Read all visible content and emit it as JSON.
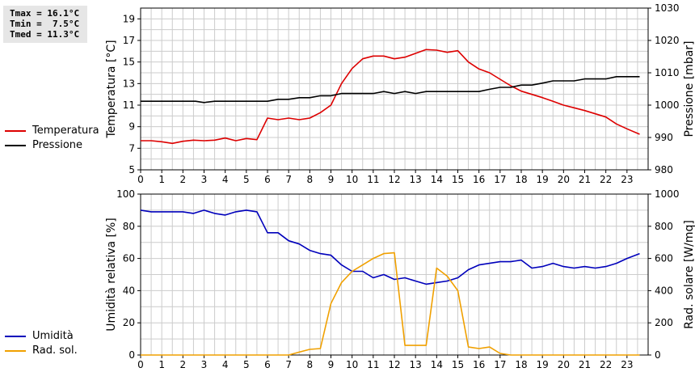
{
  "stats": {
    "tmax": "Tmax = 16.1°C",
    "tmin": "Tmin =  7.5°C",
    "tmed": "Tmed = 11.3°C"
  },
  "legend": {
    "temp": "Temperatura",
    "press": "Pressione",
    "hum": "Umidità",
    "rad": "Rad. sol."
  },
  "colors": {
    "temp": "#dd0000",
    "press": "#000000",
    "hum": "#0000bb",
    "rad": "#f0a000",
    "grid": "#cccccc"
  },
  "chart_data": [
    {
      "type": "line",
      "xlabel": "",
      "ylabel": "Temperatura [°C]",
      "y2label": "Pressione [mbar]",
      "xlim": [
        0,
        24
      ],
      "ylim": [
        5,
        20
      ],
      "y2lim": [
        980,
        1030
      ],
      "x_ticks": [
        "0",
        "1",
        "2",
        "3",
        "4",
        "5",
        "6",
        "7",
        "8",
        "9",
        "10",
        "11",
        "12",
        "13",
        "14",
        "15",
        "16",
        "17",
        "18",
        "19",
        "20",
        "21",
        "22",
        "23"
      ],
      "y_ticks": [
        "5",
        "7",
        "9",
        "11",
        "13",
        "15",
        "17",
        "19"
      ],
      "y2_ticks": [
        "980",
        "990",
        "1000",
        "1010",
        "1020",
        "1030"
      ],
      "grid": true,
      "series": [
        {
          "name": "Temperatura",
          "axis": "left",
          "points": [
            [
              0,
              7.7
            ],
            [
              0.5,
              7.7
            ],
            [
              1,
              7.6
            ],
            [
              1.5,
              7.45
            ],
            [
              2,
              7.65
            ],
            [
              2.5,
              7.75
            ],
            [
              3,
              7.7
            ],
            [
              3.5,
              7.75
            ],
            [
              4,
              7.95
            ],
            [
              4.5,
              7.7
            ],
            [
              5,
              7.9
            ],
            [
              5.5,
              7.8
            ],
            [
              6,
              9.8
            ],
            [
              6.5,
              9.65
            ],
            [
              7,
              9.8
            ],
            [
              7.5,
              9.65
            ],
            [
              8,
              9.8
            ],
            [
              8.5,
              10.3
            ],
            [
              9,
              11.0
            ],
            [
              9.5,
              13.0
            ],
            [
              10,
              14.4
            ],
            [
              10.5,
              15.3
            ],
            [
              11,
              15.55
            ],
            [
              11.5,
              15.55
            ],
            [
              12,
              15.3
            ],
            [
              12.5,
              15.45
            ],
            [
              13,
              15.8
            ],
            [
              13.5,
              16.15
            ],
            [
              14,
              16.1
            ],
            [
              14.5,
              15.9
            ],
            [
              15,
              16.05
            ],
            [
              15.5,
              15.0
            ],
            [
              16,
              14.35
            ],
            [
              16.5,
              14.0
            ],
            [
              17,
              13.4
            ],
            [
              17.5,
              12.8
            ],
            [
              18,
              12.3
            ],
            [
              18.5,
              12.0
            ],
            [
              19,
              11.7
            ],
            [
              19.5,
              11.35
            ],
            [
              20,
              11.0
            ],
            [
              20.5,
              10.75
            ],
            [
              21,
              10.5
            ],
            [
              21.5,
              10.2
            ],
            [
              22,
              9.9
            ],
            [
              22.5,
              9.25
            ],
            [
              23,
              8.8
            ],
            [
              23.6,
              8.3
            ]
          ]
        },
        {
          "name": "Pressione",
          "axis": "right",
          "points": [
            [
              0,
              1001.2
            ],
            [
              1,
              1001.2
            ],
            [
              2,
              1001.2
            ],
            [
              2.6,
              1001.2
            ],
            [
              3,
              1000.8
            ],
            [
              3.5,
              1001.2
            ],
            [
              4,
              1001.2
            ],
            [
              5,
              1001.2
            ],
            [
              6,
              1001.2
            ],
            [
              6.5,
              1001.8
            ],
            [
              7,
              1001.8
            ],
            [
              7.5,
              1002.3
            ],
            [
              8,
              1002.3
            ],
            [
              8.5,
              1002.9
            ],
            [
              9,
              1002.9
            ],
            [
              9.5,
              1003.6
            ],
            [
              10,
              1003.6
            ],
            [
              11,
              1003.6
            ],
            [
              11.5,
              1004.2
            ],
            [
              12,
              1003.6
            ],
            [
              12.5,
              1004.2
            ],
            [
              13,
              1003.6
            ],
            [
              13.5,
              1004.2
            ],
            [
              14,
              1004.2
            ],
            [
              15,
              1004.2
            ],
            [
              16,
              1004.2
            ],
            [
              16.5,
              1004.9
            ],
            [
              17,
              1005.5
            ],
            [
              17.5,
              1005.5
            ],
            [
              18,
              1006.2
            ],
            [
              18.5,
              1006.2
            ],
            [
              19,
              1006.8
            ],
            [
              19.5,
              1007.5
            ],
            [
              20,
              1007.5
            ],
            [
              20.5,
              1007.5
            ],
            [
              21,
              1008.1
            ],
            [
              21.5,
              1008.1
            ],
            [
              22,
              1008.1
            ],
            [
              22.5,
              1008.8
            ],
            [
              23,
              1008.8
            ],
            [
              23.6,
              1008.8
            ]
          ]
        }
      ]
    },
    {
      "type": "line",
      "xlabel": "",
      "ylabel": "Umidità relativa [%]",
      "y2label": "Rad. solare [W/mq]",
      "xlim": [
        0,
        24
      ],
      "ylim": [
        0,
        100
      ],
      "y2lim": [
        0,
        1000
      ],
      "x_ticks": [
        "0",
        "1",
        "2",
        "3",
        "4",
        "5",
        "6",
        "7",
        "8",
        "9",
        "10",
        "11",
        "12",
        "13",
        "14",
        "15",
        "16",
        "17",
        "18",
        "19",
        "20",
        "21",
        "22",
        "23"
      ],
      "y_ticks": [
        "0",
        "20",
        "40",
        "60",
        "80",
        "100"
      ],
      "y2_ticks": [
        "0",
        "200",
        "400",
        "600",
        "800",
        "1000"
      ],
      "grid": true,
      "series": [
        {
          "name": "Umidità",
          "axis": "left",
          "points": [
            [
              0,
              90
            ],
            [
              0.5,
              89
            ],
            [
              1,
              89
            ],
            [
              1.5,
              89
            ],
            [
              2,
              89
            ],
            [
              2.5,
              88
            ],
            [
              3,
              90
            ],
            [
              3.5,
              88
            ],
            [
              4,
              87
            ],
            [
              4.5,
              89
            ],
            [
              5,
              90
            ],
            [
              5.5,
              89
            ],
            [
              6,
              76
            ],
            [
              6.5,
              76
            ],
            [
              7,
              71
            ],
            [
              7.5,
              69
            ],
            [
              8,
              65
            ],
            [
              8.5,
              63
            ],
            [
              9,
              62
            ],
            [
              9.5,
              56
            ],
            [
              10,
              52
            ],
            [
              10.5,
              52
            ],
            [
              11,
              48
            ],
            [
              11.5,
              50
            ],
            [
              12,
              47
            ],
            [
              12.5,
              48
            ],
            [
              13,
              46
            ],
            [
              13.5,
              44
            ],
            [
              14,
              45
            ],
            [
              14.5,
              46
            ],
            [
              15,
              48
            ],
            [
              15.5,
              53
            ],
            [
              16,
              56
            ],
            [
              16.5,
              57
            ],
            [
              17,
              58
            ],
            [
              17.5,
              58
            ],
            [
              18,
              59
            ],
            [
              18.5,
              54
            ],
            [
              19,
              55
            ],
            [
              19.5,
              57
            ],
            [
              20,
              55
            ],
            [
              20.5,
              54
            ],
            [
              21,
              55
            ],
            [
              21.5,
              54
            ],
            [
              22,
              55
            ],
            [
              22.5,
              57
            ],
            [
              23,
              60
            ],
            [
              23.6,
              63
            ]
          ]
        },
        {
          "name": "Rad. sol.",
          "axis": "right",
          "points": [
            [
              0,
              0
            ],
            [
              1,
              0
            ],
            [
              2,
              0
            ],
            [
              3,
              0
            ],
            [
              4,
              0
            ],
            [
              5,
              0
            ],
            [
              6,
              0
            ],
            [
              7,
              0
            ],
            [
              7.5,
              18
            ],
            [
              8,
              35
            ],
            [
              8.5,
              40
            ],
            [
              9,
              320
            ],
            [
              9.5,
              450
            ],
            [
              10,
              520
            ],
            [
              10.5,
              560
            ],
            [
              11,
              600
            ],
            [
              11.5,
              630
            ],
            [
              12,
              635
            ],
            [
              12.5,
              60
            ],
            [
              13,
              60
            ],
            [
              13.5,
              60
            ],
            [
              14,
              540
            ],
            [
              14.5,
              490
            ],
            [
              15,
              400
            ],
            [
              15.5,
              50
            ],
            [
              16,
              40
            ],
            [
              16.5,
              50
            ],
            [
              17,
              10
            ],
            [
              17.5,
              0
            ],
            [
              18,
              0
            ],
            [
              19,
              0
            ],
            [
              20,
              0
            ],
            [
              21,
              0
            ],
            [
              22,
              0
            ],
            [
              23,
              0
            ],
            [
              23.6,
              0
            ]
          ]
        }
      ]
    }
  ]
}
